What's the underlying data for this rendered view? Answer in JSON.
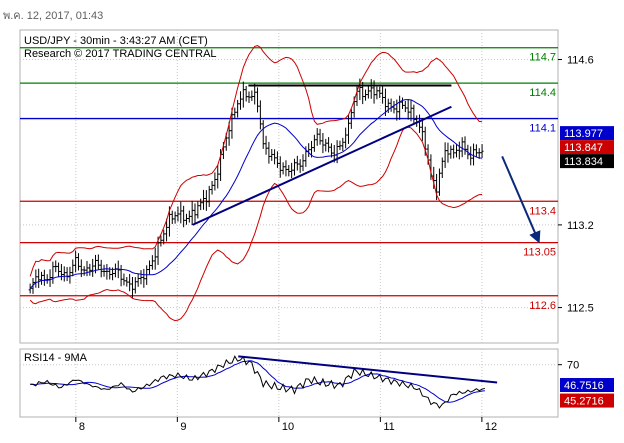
{
  "header": {
    "date_stamp": "พ.ค. 12, 2017, 01:43"
  },
  "chart_data": [
    {
      "type": "line",
      "panel": "price",
      "title": "USD/JPY - 30min - 3:43:27 AM (CET)",
      "subtitle": "Research © 2017 TRADING CENTRAL",
      "x_ticks": [
        "8",
        "9",
        "10",
        "11",
        "12"
      ],
      "ylim": [
        112.2,
        114.85
      ],
      "y_ticks": [
        114.6,
        113.2,
        112.5
      ],
      "grid": true,
      "colors": {
        "candles": "#000000",
        "bands": "#cc0000",
        "ma": "#0000cc",
        "trendline": "#000080",
        "resistance_line": "#000000",
        "arrow": "#0a2a7a",
        "axis_price_bg": "#ffffff",
        "current_price_bg": "#000000",
        "blue_label_bg": "#0000cc",
        "red_label_bg": "#cc0000"
      },
      "horizontal_levels": [
        {
          "value": 114.7,
          "label": "114.7",
          "color": "#008000"
        },
        {
          "value": 114.4,
          "label": "114.4",
          "color": "#008000"
        },
        {
          "value": 114.1,
          "label": "114.1",
          "color": "#0000cc"
        },
        {
          "value": 113.4,
          "label": "113.4",
          "color": "#cc0000"
        },
        {
          "value": 113.05,
          "label": "113.05",
          "color": "#cc0000"
        },
        {
          "value": 112.6,
          "label": "112.6",
          "color": "#cc0000"
        }
      ],
      "price_labels": [
        {
          "value": 113.977,
          "label": "113.977",
          "style": "blue"
        },
        {
          "value": 113.847,
          "label": "113.847",
          "style": "red"
        },
        {
          "value": 113.834,
          "label": "113.834",
          "style": "current"
        }
      ],
      "price_series": [
        {
          "x": 7.55,
          "y": 112.65
        },
        {
          "x": 7.62,
          "y": 112.78
        },
        {
          "x": 7.7,
          "y": 112.72
        },
        {
          "x": 7.8,
          "y": 112.85
        },
        {
          "x": 7.9,
          "y": 112.75
        },
        {
          "x": 8.0,
          "y": 112.9
        },
        {
          "x": 8.08,
          "y": 112.8
        },
        {
          "x": 8.2,
          "y": 112.88
        },
        {
          "x": 8.3,
          "y": 112.78
        },
        {
          "x": 8.4,
          "y": 112.82
        },
        {
          "x": 8.5,
          "y": 112.7
        },
        {
          "x": 8.55,
          "y": 112.68
        },
        {
          "x": 8.6,
          "y": 112.72
        },
        {
          "x": 8.7,
          "y": 112.8
        },
        {
          "x": 8.78,
          "y": 112.95
        },
        {
          "x": 8.85,
          "y": 113.1
        },
        {
          "x": 8.92,
          "y": 113.25
        },
        {
          "x": 9.0,
          "y": 113.3
        },
        {
          "x": 9.1,
          "y": 113.25
        },
        {
          "x": 9.2,
          "y": 113.35
        },
        {
          "x": 9.3,
          "y": 113.45
        },
        {
          "x": 9.38,
          "y": 113.6
        },
        {
          "x": 9.45,
          "y": 113.85
        },
        {
          "x": 9.52,
          "y": 114.05
        },
        {
          "x": 9.6,
          "y": 114.25
        },
        {
          "x": 9.66,
          "y": 114.32
        },
        {
          "x": 9.72,
          "y": 114.28
        },
        {
          "x": 9.78,
          "y": 114.3
        },
        {
          "x": 9.85,
          "y": 113.85
        },
        {
          "x": 9.92,
          "y": 113.8
        },
        {
          "x": 10.0,
          "y": 113.7
        },
        {
          "x": 10.08,
          "y": 113.65
        },
        {
          "x": 10.15,
          "y": 113.7
        },
        {
          "x": 10.22,
          "y": 113.72
        },
        {
          "x": 10.3,
          "y": 113.85
        },
        {
          "x": 10.38,
          "y": 113.95
        },
        {
          "x": 10.45,
          "y": 113.88
        },
        {
          "x": 10.55,
          "y": 113.8
        },
        {
          "x": 10.62,
          "y": 113.9
        },
        {
          "x": 10.68,
          "y": 114.0
        },
        {
          "x": 10.72,
          "y": 114.2
        },
        {
          "x": 10.78,
          "y": 114.35
        },
        {
          "x": 10.85,
          "y": 114.3
        },
        {
          "x": 10.92,
          "y": 114.35
        },
        {
          "x": 11.0,
          "y": 114.3
        },
        {
          "x": 11.08,
          "y": 114.2
        },
        {
          "x": 11.15,
          "y": 114.18
        },
        {
          "x": 11.22,
          "y": 114.22
        },
        {
          "x": 11.3,
          "y": 114.15
        },
        {
          "x": 11.38,
          "y": 114.05
        },
        {
          "x": 11.45,
          "y": 113.85
        },
        {
          "x": 11.5,
          "y": 113.6
        },
        {
          "x": 11.55,
          "y": 113.5
        },
        {
          "x": 11.6,
          "y": 113.7
        },
        {
          "x": 11.65,
          "y": 113.85
        },
        {
          "x": 11.72,
          "y": 113.8
        },
        {
          "x": 11.8,
          "y": 113.88
        },
        {
          "x": 11.88,
          "y": 113.78
        },
        {
          "x": 11.95,
          "y": 113.82
        },
        {
          "x": 12.02,
          "y": 113.834
        }
      ],
      "trendlines": [
        {
          "from": {
            "x": 9.15,
            "y": 113.2
          },
          "to": {
            "x": 11.7,
            "y": 114.2
          },
          "role": "support"
        },
        {
          "from": {
            "x": 9.7,
            "y": 114.38
          },
          "to": {
            "x": 11.7,
            "y": 114.38
          },
          "role": "resistance"
        }
      ],
      "arrow": {
        "from": {
          "x": 12.2,
          "y": 113.78
        },
        "to": {
          "x": 12.55,
          "y": 113.08
        }
      }
    },
    {
      "type": "line",
      "panel": "indicator",
      "title": "RSI14 - 9MA",
      "x_ticks": [
        "8",
        "9",
        "10",
        "11",
        "12"
      ],
      "ylim": [
        20,
        85
      ],
      "y_ticks": [
        70
      ],
      "grid": true,
      "colors": {
        "rsi": "#000000",
        "ma": "#0000cc",
        "trendline": "#000080"
      },
      "price_labels": [
        {
          "value": 46.7516,
          "label": "46.7516",
          "style": "blue"
        },
        {
          "value": 45.2716,
          "label": "45.2716",
          "style": "red"
        }
      ],
      "trendline": {
        "from": {
          "x": 9.6,
          "y": 78
        },
        "to": {
          "x": 12.15,
          "y": 53
        }
      },
      "rsi_series": [
        {
          "x": 7.55,
          "y": 50
        },
        {
          "x": 7.7,
          "y": 54
        },
        {
          "x": 7.85,
          "y": 48
        },
        {
          "x": 8.0,
          "y": 56
        },
        {
          "x": 8.15,
          "y": 50
        },
        {
          "x": 8.3,
          "y": 46
        },
        {
          "x": 8.45,
          "y": 52
        },
        {
          "x": 8.55,
          "y": 44
        },
        {
          "x": 8.7,
          "y": 50
        },
        {
          "x": 8.85,
          "y": 58
        },
        {
          "x": 9.0,
          "y": 60
        },
        {
          "x": 9.15,
          "y": 56
        },
        {
          "x": 9.3,
          "y": 62
        },
        {
          "x": 9.45,
          "y": 70
        },
        {
          "x": 9.6,
          "y": 76
        },
        {
          "x": 9.72,
          "y": 72
        },
        {
          "x": 9.85,
          "y": 52
        },
        {
          "x": 10.0,
          "y": 48
        },
        {
          "x": 10.15,
          "y": 46
        },
        {
          "x": 10.3,
          "y": 56
        },
        {
          "x": 10.45,
          "y": 52
        },
        {
          "x": 10.6,
          "y": 50
        },
        {
          "x": 10.75,
          "y": 64
        },
        {
          "x": 10.9,
          "y": 60
        },
        {
          "x": 11.05,
          "y": 56
        },
        {
          "x": 11.2,
          "y": 52
        },
        {
          "x": 11.35,
          "y": 48
        },
        {
          "x": 11.5,
          "y": 34
        },
        {
          "x": 11.6,
          "y": 30
        },
        {
          "x": 11.72,
          "y": 42
        },
        {
          "x": 11.85,
          "y": 44
        },
        {
          "x": 11.95,
          "y": 46
        },
        {
          "x": 12.05,
          "y": 46.75
        }
      ]
    }
  ]
}
